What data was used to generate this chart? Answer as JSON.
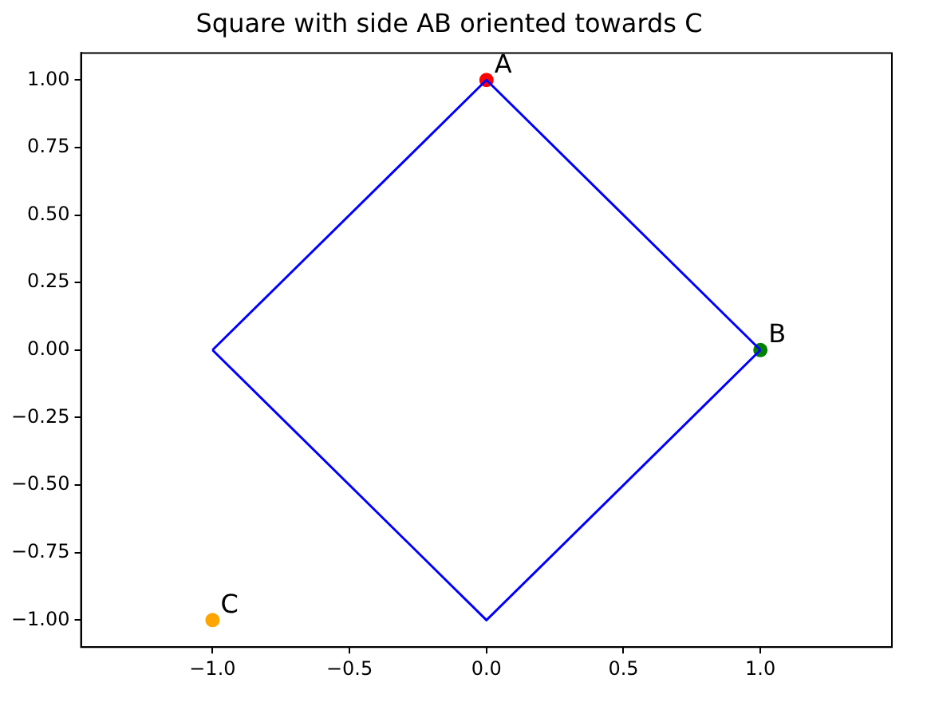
{
  "chart_data": {
    "type": "line",
    "title": "Square with side AB oriented towards C",
    "xlim": [
      -1.48,
      1.48
    ],
    "ylim": [
      -1.1,
      1.1
    ],
    "xticks": [
      {
        "value": -1,
        "label": "−1.0"
      },
      {
        "value": -0.5,
        "label": "−0.5"
      },
      {
        "value": 0,
        "label": "0.0"
      },
      {
        "value": 0.5,
        "label": "0.5"
      },
      {
        "value": 1,
        "label": "1.0"
      }
    ],
    "yticks": [
      {
        "value": -1,
        "label": "−1.00"
      },
      {
        "value": -0.75,
        "label": "−0.75"
      },
      {
        "value": -0.5,
        "label": "−0.50"
      },
      {
        "value": -0.25,
        "label": "−0.25"
      },
      {
        "value": 0,
        "label": "0.00"
      },
      {
        "value": 0.25,
        "label": "0.25"
      },
      {
        "value": 0.5,
        "label": "0.50"
      },
      {
        "value": 0.75,
        "label": "0.75"
      },
      {
        "value": 1,
        "label": "1.00"
      }
    ],
    "grid": false,
    "series": [
      {
        "color": "#0000ff",
        "marker": "none",
        "x": [
          -1,
          0,
          1
        ],
        "values": [
          0,
          1,
          0
        ]
      },
      {
        "color": "#0000ff",
        "marker": "none",
        "x": [
          -1,
          0,
          1
        ],
        "values": [
          0,
          -1,
          0
        ]
      },
      {
        "type": "scatter",
        "colors": [
          "#ff0000",
          "#008000",
          "#ffa500"
        ],
        "marker": "circle",
        "x": [
          0,
          1,
          -1
        ],
        "values": [
          1,
          0,
          -1
        ]
      }
    ],
    "annotations": [
      {
        "text": "A",
        "x": 0,
        "y": 1
      },
      {
        "text": "B",
        "x": 1,
        "y": 0
      },
      {
        "text": "C",
        "x": -1,
        "y": -1
      }
    ]
  }
}
